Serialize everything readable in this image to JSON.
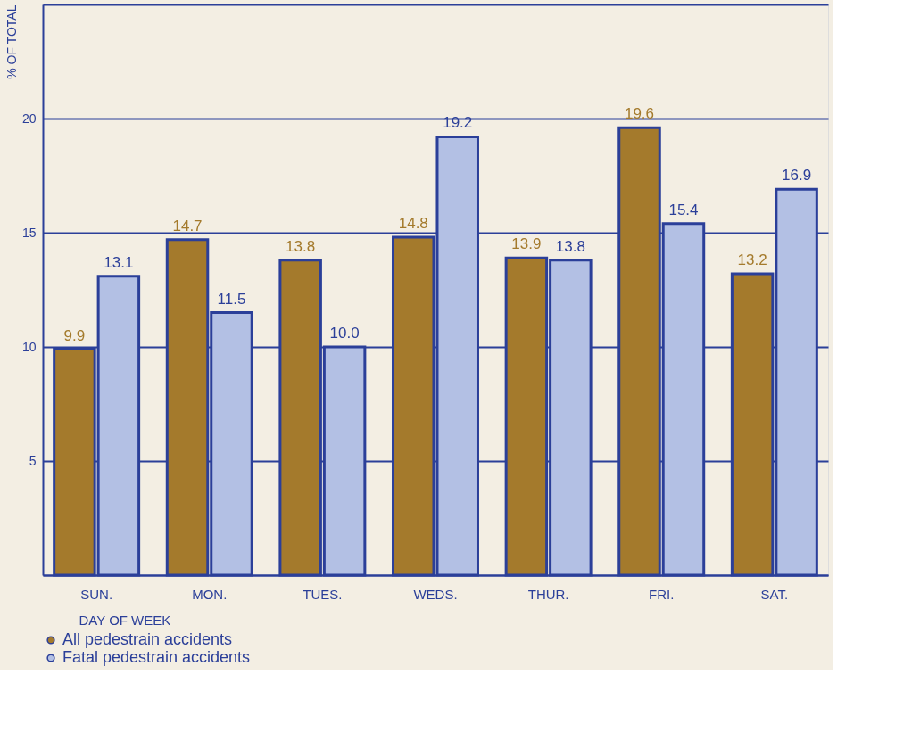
{
  "chart_data": {
    "type": "bar",
    "ylabel": "% OF TOTAL",
    "xlabel": "DAY OF WEEK",
    "categories": [
      "SUN.",
      "MON.",
      "TUES.",
      "WEDS.",
      "THUR.",
      "FRI.",
      "SAT."
    ],
    "series": [
      {
        "name": "All pedestrain accidents",
        "color": "#a47a2c",
        "values": [
          9.9,
          14.7,
          13.8,
          14.8,
          13.9,
          19.6,
          13.2
        ],
        "value_labels": [
          "9.9",
          "14.7",
          "13.8",
          "14.8",
          "13.9",
          "19.6",
          "13.2"
        ]
      },
      {
        "name": "Fatal pedestrain accidents",
        "color": "#b3c0e4",
        "values": [
          13.1,
          11.5,
          10.0,
          19.2,
          13.8,
          15.4,
          16.9
        ],
        "value_labels": [
          "13.1",
          "11.5",
          "10.0",
          "19.2",
          "13.8",
          "15.4",
          "16.9"
        ]
      }
    ],
    "ylim": [
      0,
      25
    ],
    "yticks": [
      {
        "value": 0,
        "label": null
      },
      5,
      10,
      15,
      20,
      {
        "value": 25,
        "label": null
      }
    ],
    "grid": "y",
    "legend": "bottom"
  }
}
